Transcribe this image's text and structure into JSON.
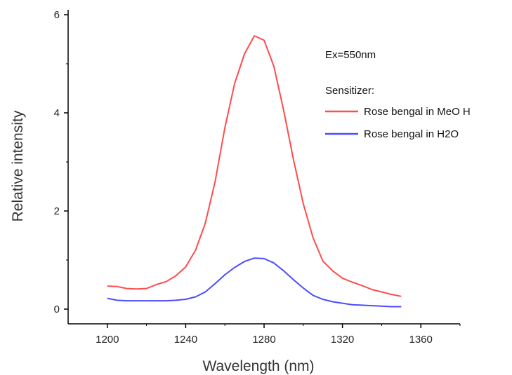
{
  "chart_data": {
    "type": "line",
    "title": "",
    "xlabel": "Wavelength (nm)",
    "ylabel": "Relative intensity",
    "xlim": [
      1180,
      1380
    ],
    "ylim": [
      -0.3,
      6.1
    ],
    "xticks": [
      1200,
      1240,
      1280,
      1320,
      1360
    ],
    "yticks": [
      0,
      2,
      4,
      6
    ],
    "x_tick_labels": [
      "1200",
      "1240",
      "1280",
      "1320",
      "1360"
    ],
    "y_tick_labels": [
      "0",
      "2",
      "4",
      "6"
    ],
    "grid": false,
    "legend_placement": "top-right",
    "annotations": [
      "Ex=550nm",
      "Sensitizer:"
    ],
    "series": [
      {
        "name": "Rose bengal in MeO H",
        "color": "#ff4c4c",
        "x": [
          1200,
          1205,
          1210,
          1215,
          1220,
          1225,
          1230,
          1235,
          1240,
          1245,
          1250,
          1255,
          1260,
          1265,
          1270,
          1275,
          1280,
          1285,
          1290,
          1295,
          1300,
          1305,
          1310,
          1315,
          1320,
          1325,
          1330,
          1335,
          1340,
          1345,
          1350
        ],
        "y": [
          0.47,
          0.46,
          0.42,
          0.41,
          0.42,
          0.5,
          0.56,
          0.68,
          0.86,
          1.2,
          1.75,
          2.6,
          3.7,
          4.6,
          5.2,
          5.57,
          5.48,
          4.95,
          4.05,
          3.05,
          2.15,
          1.45,
          0.98,
          0.78,
          0.63,
          0.55,
          0.48,
          0.4,
          0.35,
          0.3,
          0.26
        ]
      },
      {
        "name": "Rose bengal in H2O",
        "color": "#4c4cff",
        "x": [
          1200,
          1205,
          1210,
          1215,
          1220,
          1225,
          1230,
          1235,
          1240,
          1245,
          1250,
          1255,
          1260,
          1265,
          1270,
          1275,
          1280,
          1285,
          1290,
          1295,
          1300,
          1305,
          1310,
          1315,
          1320,
          1325,
          1330,
          1335,
          1340,
          1345,
          1350
        ],
        "y": [
          0.22,
          0.18,
          0.17,
          0.17,
          0.17,
          0.17,
          0.17,
          0.18,
          0.2,
          0.25,
          0.35,
          0.52,
          0.7,
          0.85,
          0.97,
          1.04,
          1.03,
          0.94,
          0.78,
          0.6,
          0.43,
          0.28,
          0.2,
          0.15,
          0.12,
          0.09,
          0.08,
          0.07,
          0.06,
          0.05,
          0.05
        ]
      }
    ]
  }
}
